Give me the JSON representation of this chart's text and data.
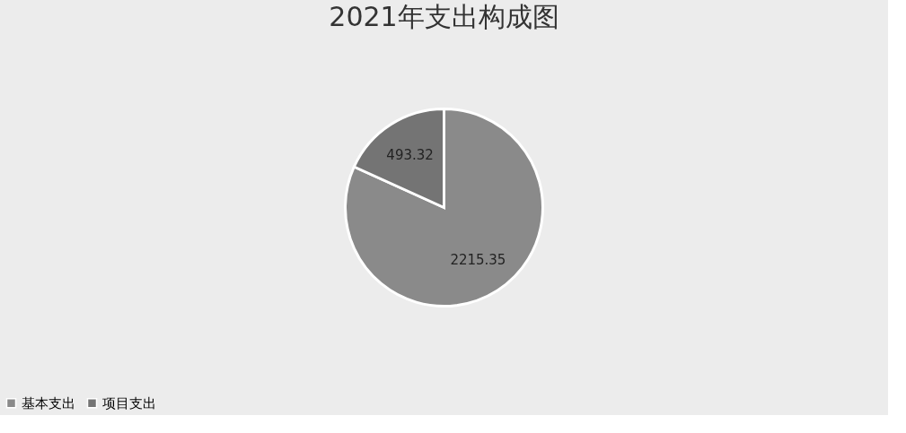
{
  "chart_data": {
    "type": "pie",
    "title": "2021年支出构成图",
    "categories": [
      "基本支出",
      "项目支出"
    ],
    "values": [
      2215.35,
      493.32
    ],
    "colors": [
      "#8a8a8a",
      "#747474"
    ],
    "data_labels": true,
    "legend": "bottom"
  }
}
